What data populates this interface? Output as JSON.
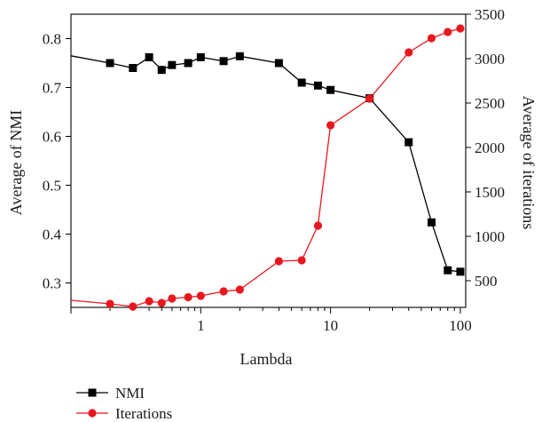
{
  "chart_data": {
    "type": "line",
    "title": "",
    "xlabel": "Lambda",
    "ylabel_left": "Average of NMI",
    "ylabel_right": "Average of iterations",
    "x_scale": "log",
    "xlim": [
      0.1,
      110
    ],
    "ylim_left": [
      0.25,
      0.85
    ],
    "ylim_right": [
      200,
      3500
    ],
    "x_ticks": [
      {
        "value": 1,
        "label": "1"
      },
      {
        "value": 10,
        "label": "10"
      },
      {
        "value": 100,
        "label": "100"
      }
    ],
    "y_ticks_left": [
      {
        "value": 0.3,
        "label": "0.3"
      },
      {
        "value": 0.4,
        "label": "0.4"
      },
      {
        "value": 0.5,
        "label": "0.5"
      },
      {
        "value": 0.6,
        "label": "0.6"
      },
      {
        "value": 0.7,
        "label": "0.7"
      },
      {
        "value": 0.8,
        "label": "0.8"
      }
    ],
    "y_ticks_right": [
      {
        "value": 500,
        "label": "500"
      },
      {
        "value": 1000,
        "label": "1000"
      },
      {
        "value": 1500,
        "label": "1500"
      },
      {
        "value": 2000,
        "label": "2000"
      },
      {
        "value": 2500,
        "label": "2500"
      },
      {
        "value": 3000,
        "label": "3000"
      },
      {
        "value": 3500,
        "label": "3500"
      }
    ],
    "series": [
      {
        "name": "NMI",
        "axis": "left",
        "color": "#000000",
        "marker": "square",
        "x": [
          0.1,
          0.2,
          0.3,
          0.4,
          0.5,
          0.6,
          0.8,
          1,
          1.5,
          2,
          4,
          6,
          8,
          10,
          20,
          40,
          60,
          80,
          100
        ],
        "values": [
          0.765,
          0.75,
          0.74,
          0.762,
          0.736,
          0.746,
          0.75,
          0.762,
          0.754,
          0.764,
          0.75,
          0.71,
          0.704,
          0.695,
          0.678,
          0.588,
          0.424,
          0.326,
          0.323
        ]
      },
      {
        "name": "Iterations",
        "axis": "right",
        "color": "#e8171f",
        "marker": "circle",
        "x": [
          0.1,
          0.2,
          0.3,
          0.4,
          0.5,
          0.6,
          0.8,
          1,
          1.5,
          2,
          4,
          6,
          8,
          10,
          20,
          40,
          60,
          80,
          100
        ],
        "values": [
          280,
          240,
          210,
          270,
          250,
          300,
          315,
          330,
          380,
          400,
          720,
          730,
          1120,
          2250,
          2550,
          3070,
          3230,
          3300,
          3340
        ]
      }
    ],
    "legend_position": "bottom-left"
  }
}
